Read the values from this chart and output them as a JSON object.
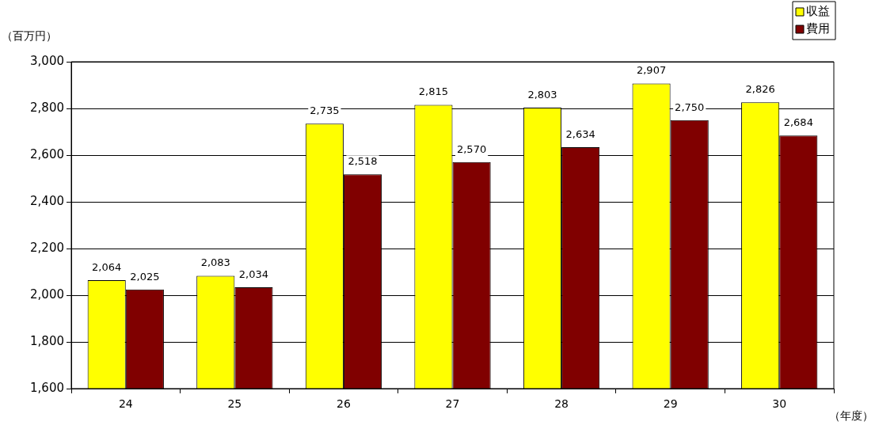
{
  "chart_data": {
    "type": "bar",
    "ylabel": "（百万円）",
    "xlabel": "（年度）",
    "categories": [
      "24",
      "25",
      "26",
      "27",
      "28",
      "29",
      "30"
    ],
    "series": [
      {
        "name": "収益",
        "color": "#ffff00",
        "values": [
          2064,
          2083,
          2735,
          2815,
          2803,
          2907,
          2826
        ],
        "value_labels": [
          "2,064",
          "2,083",
          "2,735",
          "2,815",
          "2,803",
          "2,907",
          "2,826"
        ]
      },
      {
        "name": "費用",
        "color": "#800000",
        "values": [
          2025,
          2034,
          2518,
          2570,
          2634,
          2750,
          2684
        ],
        "value_labels": [
          "2,025",
          "2,034",
          "2,518",
          "2,570",
          "2,634",
          "2,750",
          "2,684"
        ]
      }
    ],
    "ylim": [
      1600,
      3000
    ],
    "yticks": [
      {
        "value": 1600,
        "label": "1,600"
      },
      {
        "value": 1800,
        "label": "1,800"
      },
      {
        "value": 2000,
        "label": "2,000"
      },
      {
        "value": 2200,
        "label": "2,200"
      },
      {
        "value": 2400,
        "label": "2,400"
      },
      {
        "value": 2600,
        "label": "2,600"
      },
      {
        "value": 2800,
        "label": "2,800"
      },
      {
        "value": 3000,
        "label": "3,000"
      }
    ],
    "grid": "y",
    "legend": "top right"
  }
}
